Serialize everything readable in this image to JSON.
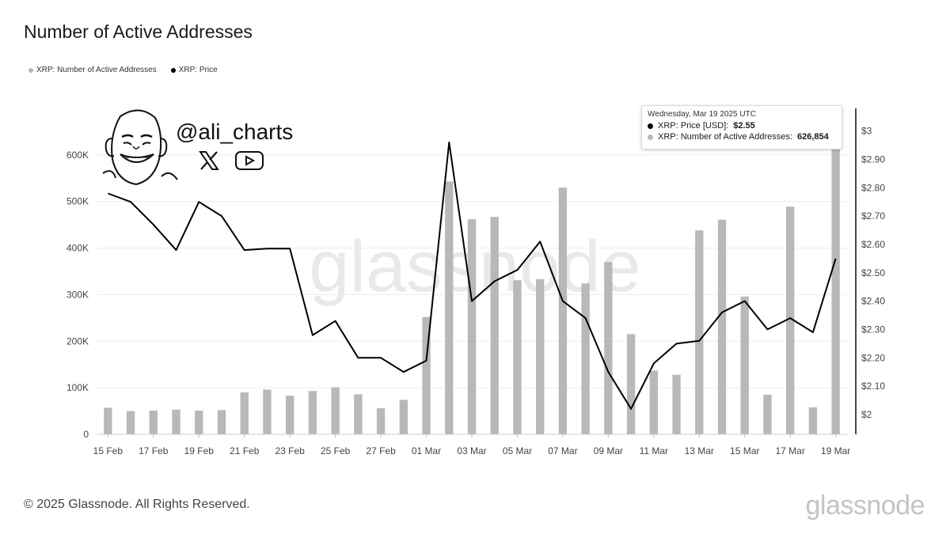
{
  "title": "Number of Active Addresses",
  "legend": [
    {
      "label": "XRP: Number of Active Addresses",
      "color": "#b8b8b8"
    },
    {
      "label": "XRP: Price",
      "color": "#000000"
    }
  ],
  "tooltip": {
    "date": "Wednesday, Mar 19 2025 UTC",
    "price_label": "XRP: Price [USD]:",
    "price_value": "$2.55",
    "addresses_label": "XRP: Number of Active Addresses:",
    "addresses_value": "626,854"
  },
  "overlay": {
    "handle": "@ali_charts",
    "icons": [
      "x-logo-icon",
      "youtube-icon",
      "cartoon-face-icon"
    ]
  },
  "footer": "© 2025 Glassnode. All Rights Reserved.",
  "brand": "glassnode",
  "watermark": "glassnode",
  "chart_data": {
    "type": "bar",
    "x": [
      "15 Feb",
      "16 Feb",
      "17 Feb",
      "18 Feb",
      "19 Feb",
      "20 Feb",
      "21 Feb",
      "22 Feb",
      "23 Feb",
      "24 Feb",
      "25 Feb",
      "26 Feb",
      "27 Feb",
      "28 Feb",
      "01 Mar",
      "02 Mar",
      "03 Mar",
      "04 Mar",
      "05 Mar",
      "06 Mar",
      "07 Mar",
      "08 Mar",
      "09 Mar",
      "10 Mar",
      "11 Mar",
      "12 Mar",
      "13 Mar",
      "14 Mar",
      "15 Mar",
      "16 Mar",
      "17 Mar",
      "18 Mar",
      "19 Mar"
    ],
    "x_tick_labels": [
      "15 Feb",
      "17 Feb",
      "19 Feb",
      "21 Feb",
      "23 Feb",
      "25 Feb",
      "27 Feb",
      "01 Mar",
      "03 Mar",
      "05 Mar",
      "07 Mar",
      "09 Mar",
      "11 Mar",
      "13 Mar",
      "15 Mar",
      "17 Mar",
      "19 Mar"
    ],
    "series": [
      {
        "name": "XRP: Number of Active Addresses",
        "type": "bar",
        "axis": "left",
        "color": "#b8b8b8",
        "values": [
          57000,
          50000,
          51000,
          53000,
          51000,
          52000,
          90000,
          96000,
          83000,
          93000,
          101000,
          86000,
          56000,
          74000,
          252000,
          543000,
          462000,
          467000,
          331000,
          333000,
          530000,
          324000,
          370000,
          215000,
          137000,
          128000,
          438000,
          461000,
          296000,
          85000,
          489000,
          58000,
          626854
        ]
      },
      {
        "name": "XRP: Price",
        "type": "line",
        "axis": "right",
        "color": "#000000",
        "values": [
          2.78,
          2.75,
          2.67,
          2.58,
          2.75,
          2.7,
          2.58,
          2.585,
          2.585,
          2.28,
          2.33,
          2.2,
          2.2,
          2.15,
          2.19,
          2.96,
          2.4,
          2.47,
          2.51,
          2.61,
          2.4,
          2.34,
          2.15,
          2.02,
          2.18,
          2.25,
          2.26,
          2.36,
          2.4,
          2.3,
          2.34,
          2.29,
          2.55
        ]
      }
    ],
    "y_left": {
      "ticks": [
        0,
        100000,
        200000,
        300000,
        400000,
        500000,
        600000
      ],
      "tick_labels": [
        "0",
        "100K",
        "200K",
        "300K",
        "400K",
        "500K",
        "600K"
      ],
      "range": [
        0,
        700000
      ]
    },
    "y_right": {
      "ticks": [
        2,
        2.1,
        2.2,
        2.3,
        2.4,
        2.5,
        2.6,
        2.7,
        2.8,
        2.9,
        3
      ],
      "tick_labels": [
        "$2",
        "$2.10",
        "$2.20",
        "$2.30",
        "$2.40",
        "$2.50",
        "$2.60",
        "$2.70",
        "$2.80",
        "$2.90",
        "$3"
      ],
      "range": [
        1.93,
        3.08
      ]
    },
    "grid": true,
    "legend_position": "top-left"
  }
}
